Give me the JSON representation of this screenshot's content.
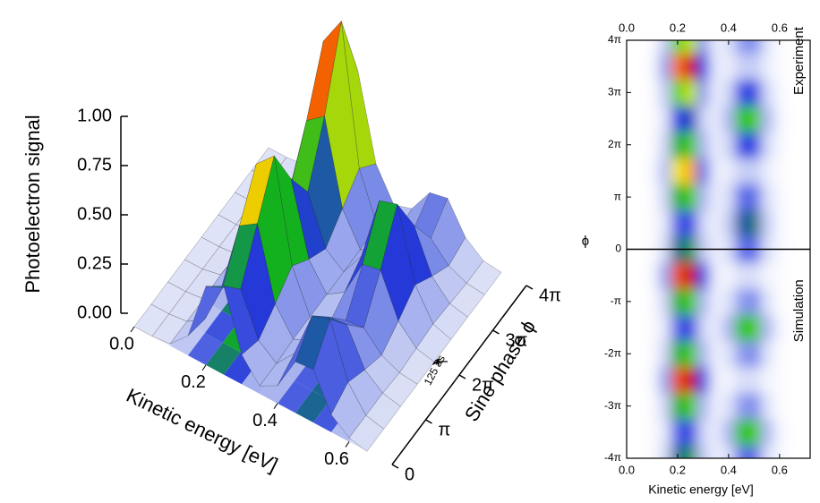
{
  "chart_data": [
    {
      "type": "surface3d",
      "zlabel": "Photoelectron signal",
      "xlabel": "Kinetic energy [eV]",
      "ylabel": "Sine phase ϕ",
      "annotation": "125 as",
      "x": [
        0,
        0.05,
        0.1,
        0.15,
        0.2,
        0.25,
        0.3,
        0.35,
        0.4,
        0.45,
        0.5,
        0.55,
        0.6,
        0.65
      ],
      "y": [
        0,
        1.5708,
        3.1416,
        4.7124,
        6.2832,
        7.854,
        9.4248,
        10.9956,
        12.5664
      ],
      "values": [
        [
          0,
          0,
          0.01,
          0.1,
          0.4,
          0.45,
          0.15,
          0.04,
          0.09,
          0.26,
          0.27,
          0.09,
          0.02,
          0
        ],
        [
          0,
          0,
          0.01,
          0.07,
          0.28,
          0.32,
          0.11,
          0.04,
          0.14,
          0.38,
          0.41,
          0.14,
          0.02,
          0
        ],
        [
          0,
          0,
          0.01,
          0.12,
          0.48,
          0.54,
          0.18,
          0.05,
          0.09,
          0.26,
          0.27,
          0.09,
          0.02,
          0
        ],
        [
          0,
          0,
          0.02,
          0.17,
          0.68,
          0.77,
          0.26,
          0.05,
          0.05,
          0.13,
          0.14,
          0.05,
          0.01,
          0
        ],
        [
          0,
          0,
          0.01,
          0.12,
          0.48,
          0.54,
          0.18,
          0.05,
          0.11,
          0.3,
          0.32,
          0.11,
          0.02,
          0
        ],
        [
          0,
          0,
          0.01,
          0.08,
          0.32,
          0.36,
          0.12,
          0.05,
          0.18,
          0.51,
          0.54,
          0.18,
          0.03,
          0
        ],
        [
          0,
          0,
          0.01,
          0.14,
          0.56,
          0.63,
          0.21,
          0.05,
          0.11,
          0.3,
          0.32,
          0.11,
          0.02,
          0
        ],
        [
          0,
          0,
          0.02,
          0.2,
          0.85,
          1.0,
          0.3,
          0.06,
          0.05,
          0.13,
          0.14,
          0.05,
          0.01,
          0
        ],
        [
          0,
          0,
          0.01,
          0.14,
          0.56,
          0.63,
          0.21,
          0.05,
          0.08,
          0.21,
          0.23,
          0.08,
          0.01,
          0
        ]
      ],
      "xlim": [
        0,
        0.7
      ],
      "ylim": [
        0,
        12.5664
      ],
      "zlim": [
        0,
        1
      ],
      "xticks": [
        {
          "value": 0,
          "label": "0.0"
        },
        {
          "value": 0.2,
          "label": "0.2"
        },
        {
          "value": 0.4,
          "label": "0.4"
        },
        {
          "value": 0.6,
          "label": "0.6"
        }
      ],
      "yticks": [
        0,
        {
          "value": 3.1416,
          "label": "π"
        },
        {
          "value": 6.2832,
          "label": "2π"
        },
        {
          "value": 9.4248,
          "label": "3π"
        },
        {
          "value": 12.5664,
          "label": "4π"
        }
      ],
      "zticks": [
        {
          "value": 0,
          "label": "0.00"
        },
        {
          "value": 0.25,
          "label": "0.25"
        },
        {
          "value": 0.5,
          "label": "0.50"
        },
        {
          "value": 0.75,
          "label": "0.75"
        },
        {
          "value": 1,
          "label": "1.00"
        }
      ],
      "colormap": [
        "#dfe3f7",
        "#8090e8",
        "#2238d8",
        "#10b020",
        "#e8e800",
        "#ff8000",
        "#d00000"
      ]
    },
    {
      "type": "heatmap",
      "xlabel": "Kinetic energy [eV]",
      "ylabel": "ϕ",
      "x": [
        0,
        0.05,
        0.1,
        0.15,
        0.2,
        0.25,
        0.3,
        0.35,
        0.4,
        0.45,
        0.5,
        0.55,
        0.6,
        0.65
      ],
      "series": [
        {
          "name": "Experiment",
          "y": [
            0,
            1.5708,
            3.1416,
            4.7124,
            6.2832,
            7.854,
            9.4248,
            10.9956,
            12.5664
          ],
          "values": [
            [
              0,
              0,
              0.01,
              0.1,
              0.4,
              0.45,
              0.15,
              0.04,
              0.09,
              0.26,
              0.27,
              0.09,
              0.02,
              0
            ],
            [
              0,
              0,
              0.01,
              0.07,
              0.28,
              0.32,
              0.11,
              0.04,
              0.14,
              0.38,
              0.41,
              0.14,
              0.02,
              0
            ],
            [
              0,
              0,
              0.01,
              0.12,
              0.48,
              0.54,
              0.18,
              0.05,
              0.09,
              0.26,
              0.27,
              0.09,
              0.02,
              0
            ],
            [
              0,
              0,
              0.02,
              0.17,
              0.68,
              0.77,
              0.26,
              0.05,
              0.05,
              0.13,
              0.14,
              0.05,
              0.01,
              0
            ],
            [
              0,
              0,
              0.01,
              0.12,
              0.48,
              0.54,
              0.18,
              0.05,
              0.11,
              0.3,
              0.32,
              0.11,
              0.02,
              0
            ],
            [
              0,
              0,
              0.01,
              0.08,
              0.32,
              0.36,
              0.12,
              0.05,
              0.18,
              0.51,
              0.54,
              0.18,
              0.03,
              0
            ],
            [
              0,
              0,
              0.01,
              0.14,
              0.56,
              0.63,
              0.21,
              0.05,
              0.11,
              0.3,
              0.32,
              0.11,
              0.02,
              0
            ],
            [
              0,
              0,
              0.02,
              0.2,
              0.85,
              1.0,
              0.3,
              0.06,
              0.05,
              0.13,
              0.14,
              0.05,
              0.01,
              0
            ],
            [
              0,
              0,
              0.01,
              0.14,
              0.56,
              0.63,
              0.21,
              0.05,
              0.08,
              0.21,
              0.23,
              0.08,
              0.01,
              0
            ]
          ]
        },
        {
          "name": "Simulation",
          "y": [
            -12.5664,
            -10.9956,
            -9.4248,
            -7.854,
            -6.2832,
            -4.7124,
            -3.1416,
            -1.5708,
            0
          ],
          "values": [
            [
              0,
              0,
              0.01,
              0.1,
              0.4,
              0.45,
              0.15,
              0.04,
              0.09,
              0.26,
              0.27,
              0.09,
              0.02,
              0
            ],
            [
              0,
              0,
              0.01,
              0.07,
              0.28,
              0.32,
              0.11,
              0.05,
              0.18,
              0.51,
              0.54,
              0.18,
              0.03,
              0
            ],
            [
              0,
              0,
              0.01,
              0.12,
              0.48,
              0.54,
              0.18,
              0.04,
              0.08,
              0.21,
              0.23,
              0.08,
              0.01,
              0
            ],
            [
              0,
              0,
              0.02,
              0.2,
              0.9,
              1.0,
              0.3,
              0.05,
              0.03,
              0.09,
              0.09,
              0.03,
              0.01,
              0
            ],
            [
              0,
              0,
              0.01,
              0.12,
              0.48,
              0.54,
              0.18,
              0.04,
              0.08,
              0.21,
              0.23,
              0.08,
              0.01,
              0
            ],
            [
              0,
              0,
              0.01,
              0.07,
              0.28,
              0.32,
              0.11,
              0.05,
              0.18,
              0.51,
              0.54,
              0.18,
              0.03,
              0
            ],
            [
              0,
              0,
              0.01,
              0.12,
              0.48,
              0.54,
              0.18,
              0.04,
              0.08,
              0.21,
              0.23,
              0.08,
              0.01,
              0
            ],
            [
              0,
              0,
              0.02,
              0.2,
              0.9,
              1.0,
              0.3,
              0.05,
              0.03,
              0.09,
              0.09,
              0.03,
              0.01,
              0
            ],
            [
              0,
              0,
              0.01,
              0.1,
              0.4,
              0.45,
              0.15,
              0.04,
              0.09,
              0.26,
              0.27,
              0.09,
              0.02,
              0
            ]
          ]
        }
      ],
      "xlim": [
        0,
        0.72
      ],
      "ylim": [
        -12.5664,
        12.5664
      ],
      "xticks": [
        {
          "value": 0,
          "label": "0.0"
        },
        {
          "value": 0.2,
          "label": "0.2"
        },
        {
          "value": 0.4,
          "label": "0.4"
        },
        {
          "value": 0.6,
          "label": "0.6"
        }
      ],
      "yticks": [
        {
          "value": 12.5664,
          "label": "4π"
        },
        {
          "value": 9.4248,
          "label": "3π"
        },
        {
          "value": 6.2832,
          "label": "2π"
        },
        {
          "value": 3.1416,
          "label": "π"
        },
        0,
        {
          "value": -3.1416,
          "label": "-π"
        },
        {
          "value": -6.2832,
          "label": "-2π"
        },
        {
          "value": -9.4248,
          "label": "-3π"
        },
        {
          "value": -12.5664,
          "label": "-4π"
        }
      ],
      "colormap": [
        "#ffffff",
        "#b8c2f4",
        "#1c30e0",
        "#10c010",
        "#f0f000",
        "#ff8000",
        "#d00000"
      ]
    }
  ]
}
